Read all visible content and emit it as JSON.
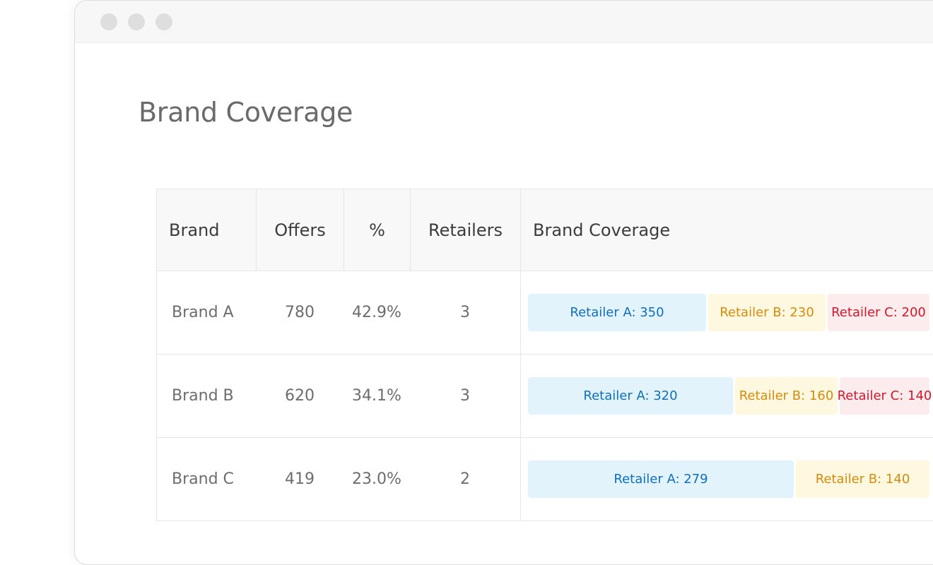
{
  "page": {
    "title": "Brand Coverage"
  },
  "table": {
    "headers": [
      "Brand",
      "Offers",
      "%",
      "Retailers",
      "Brand Coverage"
    ],
    "rows": [
      {
        "brand": "Brand A",
        "offers": "780",
        "percent": "42.9%",
        "retailers": "3",
        "coverage": [
          {
            "label": "Retailer A: 350",
            "retailer": "A",
            "value": 350
          },
          {
            "label": "Retailer B: 230",
            "retailer": "B",
            "value": 230
          },
          {
            "label": "Retailer C: 200",
            "retailer": "C",
            "value": 200
          }
        ]
      },
      {
        "brand": "Brand B",
        "offers": "620",
        "percent": "34.1%",
        "retailers": "3",
        "coverage": [
          {
            "label": "Retailer A: 320",
            "retailer": "A",
            "value": 320
          },
          {
            "label": "Retailer B: 160",
            "retailer": "B",
            "value": 160
          },
          {
            "label": "Retailer C: 140",
            "retailer": "C",
            "value": 140
          }
        ]
      },
      {
        "brand": "Brand C",
        "offers": "419",
        "percent": "23.0%",
        "retailers": "2",
        "coverage": [
          {
            "label": "Retailer A: 279",
            "retailer": "A",
            "value": 279
          },
          {
            "label": "Retailer B: 140",
            "retailer": "B",
            "value": 140
          }
        ]
      }
    ]
  },
  "colors": {
    "retailer_a_text": "#0e6fbf",
    "retailer_a_bg": "#e3f3fc",
    "retailer_b_text": "#d68b0c",
    "retailer_b_bg": "#fff8e1",
    "retailer_c_text": "#d0192b",
    "retailer_c_bg": "#fdeced"
  }
}
